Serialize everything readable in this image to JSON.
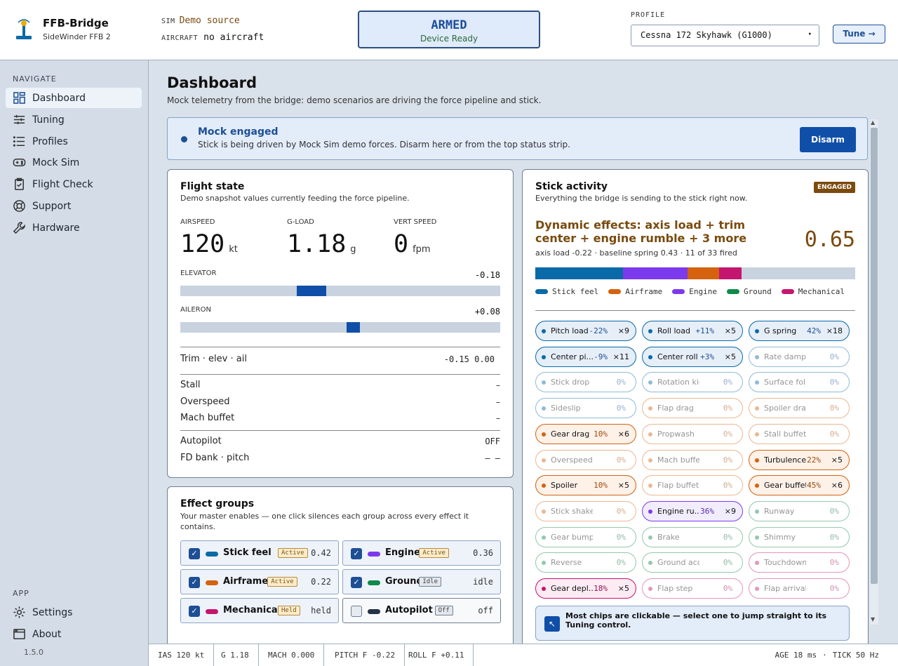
{
  "brand": {
    "title": "FFB-Bridge",
    "subtitle": "SideWinder FFB 2"
  },
  "sidebar": {
    "navigate_heading": "NAVIGATE",
    "items": [
      {
        "label": "Dashboard",
        "icon": "grid-icon"
      },
      {
        "label": "Tuning",
        "icon": "sliders-icon"
      },
      {
        "label": "Profiles",
        "icon": "list-icon"
      },
      {
        "label": "Mock Sim",
        "icon": "gamepad-icon"
      },
      {
        "label": "Flight Check",
        "icon": "clipboard-icon"
      },
      {
        "label": "Support",
        "icon": "lifebuoy-icon"
      },
      {
        "label": "Hardware",
        "icon": "wrench-icon"
      }
    ],
    "app_heading": "APP",
    "app_items": [
      {
        "label": "Settings",
        "icon": "gear-icon"
      },
      {
        "label": "About",
        "icon": "window-icon"
      }
    ],
    "version": "1.5.0"
  },
  "topbar": {
    "sim_label": "SIM",
    "sim_value": "Demo source",
    "aircraft_label": "AIRCRAFT",
    "aircraft_value": "no aircraft",
    "armed_title": "ARMED",
    "armed_sub": "Device Ready",
    "profile_label": "PROFILE",
    "profile_value": "Cessna 172 Skyhawk (G1000)",
    "tune_label": "Tune →"
  },
  "page": {
    "title": "Dashboard",
    "description": "Mock telemetry from the bridge: demo scenarios are driving the force pipeline and stick."
  },
  "banner": {
    "title": "Mock engaged",
    "text": "Stick is being driven by Mock Sim demo forces. Disarm here or from the top status strip.",
    "button": "Disarm"
  },
  "flight_state": {
    "title": "Flight state",
    "subtitle": "Demo snapshot values currently feeding the force pipeline.",
    "metrics": [
      {
        "label": "AIRSPEED",
        "value": "120",
        "unit": "kt"
      },
      {
        "label": "G-LOAD",
        "value": "1.18",
        "unit": "g"
      },
      {
        "label": "VERT SPEED",
        "value": "0",
        "unit": "fpm"
      }
    ],
    "elevator": {
      "label": "ELEVATOR",
      "value_text": "-0.18",
      "value": -0.18
    },
    "aileron": {
      "label": "AILERON",
      "value_text": "+0.08",
      "value": 0.08
    },
    "trim_label": "Trim · elev · ail",
    "trim_value": "-0.15 0.00",
    "stall_label": "Stall",
    "stall_value": "–",
    "overspeed_label": "Overspeed",
    "overspeed_value": "–",
    "mach_label": "Mach buffet",
    "mach_value": "–",
    "autopilot_label": "Autopilot",
    "autopilot_value": "OFF",
    "fd_label": "FD bank · pitch",
    "fd_value": "– –"
  },
  "effect_groups": {
    "title": "Effect groups",
    "subtitle": "Your master enables — one click silences each group across every effect it contains.",
    "groups": [
      {
        "name": "Stick feel",
        "badge": "Active",
        "value": "0.42",
        "color": "#0a6aa8",
        "checked": true,
        "kind": "active"
      },
      {
        "name": "Engine",
        "badge": "Active",
        "value": "0.36",
        "color": "#7c3aed",
        "checked": true,
        "kind": "active"
      },
      {
        "name": "Airframe",
        "badge": "Active",
        "value": "0.22",
        "color": "#d4620f",
        "checked": true,
        "kind": "active"
      },
      {
        "name": "Ground",
        "badge": "Idle",
        "value": "idle",
        "color": "#0f8a4a",
        "checked": true,
        "kind": "idle"
      },
      {
        "name": "Mechanical",
        "badge": "Held",
        "value": "held",
        "color": "#c4166f",
        "checked": true,
        "kind": "held"
      },
      {
        "name": "Autopilot",
        "badge": "Off",
        "value": "off",
        "color": "#253246",
        "checked": false,
        "kind": "off"
      }
    ]
  },
  "stick_activity": {
    "title": "Stick activity",
    "subtitle": "Everything the bridge is sending to the stick right now.",
    "badge": "ENGAGED",
    "dynamic_title": "Dynamic effects: axis load + trim center + engine rumble + 3 more",
    "dynamic_value": "0.65",
    "dynamic_sub": "axis load -0.22 · baseline spring 0.43 · 11 of 33 fired",
    "stack": [
      {
        "group": "Stick feel",
        "fraction": 0.275,
        "color": "#0a6aa8"
      },
      {
        "group": "Engine",
        "fraction": 0.2,
        "color": "#7c3aed"
      },
      {
        "group": "Airframe",
        "fraction": 0.1,
        "color": "#d4620f"
      },
      {
        "group": "Mechanical",
        "fraction": 0.07,
        "color": "#c4166f"
      }
    ],
    "legend": [
      {
        "name": "Stick feel",
        "color": "#0a6aa8"
      },
      {
        "name": "Airframe",
        "color": "#d4620f"
      },
      {
        "name": "Engine",
        "color": "#7c3aed"
      },
      {
        "name": "Ground",
        "color": "#0f8a4a"
      },
      {
        "name": "Mechanical",
        "color": "#c4166f"
      }
    ],
    "chips": [
      {
        "name": "Pitch load",
        "pct": "-22%",
        "count": "×9",
        "group": "stick",
        "active": true
      },
      {
        "name": "Roll load",
        "pct": "+11%",
        "count": "×5",
        "group": "stick",
        "active": true
      },
      {
        "name": "G spring",
        "pct": "42%",
        "count": "×18",
        "group": "stick",
        "active": true
      },
      {
        "name": "Center pi...",
        "pct": "-9%",
        "count": "×11",
        "group": "stick",
        "active": true
      },
      {
        "name": "Center roll",
        "pct": "+3%",
        "count": "×5",
        "group": "stick",
        "active": true
      },
      {
        "name": "Rate damp",
        "pct": "0%",
        "count": "",
        "group": "stick",
        "active": false
      },
      {
        "name": "Stick drop",
        "pct": "0%",
        "count": "",
        "group": "stick",
        "active": false
      },
      {
        "name": "Rotation kick",
        "pct": "0%",
        "count": "",
        "group": "stick",
        "active": false
      },
      {
        "name": "Surface follow",
        "pct": "0%",
        "count": "",
        "group": "stick",
        "active": false
      },
      {
        "name": "Sideslip",
        "pct": "0%",
        "count": "",
        "group": "stick",
        "active": false
      },
      {
        "name": "Flap drag",
        "pct": "0%",
        "count": "",
        "group": "airframe",
        "active": false
      },
      {
        "name": "Spoiler drag",
        "pct": "0%",
        "count": "",
        "group": "airframe",
        "active": false
      },
      {
        "name": "Gear drag",
        "pct": "10%",
        "count": "×6",
        "group": "airframe",
        "active": true
      },
      {
        "name": "Propwash",
        "pct": "0%",
        "count": "",
        "group": "airframe",
        "active": false
      },
      {
        "name": "Stall buffet",
        "pct": "0%",
        "count": "",
        "group": "airframe",
        "active": false
      },
      {
        "name": "Overspeed",
        "pct": "0%",
        "count": "",
        "group": "airframe",
        "active": false
      },
      {
        "name": "Mach buffet",
        "pct": "0%",
        "count": "",
        "group": "airframe",
        "active": false
      },
      {
        "name": "Turbulence",
        "pct": "22%",
        "count": "×5",
        "group": "airframe",
        "active": true
      },
      {
        "name": "Spoiler",
        "pct": "10%",
        "count": "×5",
        "group": "airframe",
        "active": true
      },
      {
        "name": "Flap buffet",
        "pct": "0%",
        "count": "",
        "group": "airframe",
        "active": false
      },
      {
        "name": "Gear buffet",
        "pct": "45%",
        "count": "×6",
        "group": "airframe",
        "active": true
      },
      {
        "name": "Stick shaker",
        "pct": "0%",
        "count": "",
        "group": "airframe",
        "active": false
      },
      {
        "name": "Engine ru...",
        "pct": "36%",
        "count": "×9",
        "group": "engine",
        "active": true
      },
      {
        "name": "Runway",
        "pct": "0%",
        "count": "",
        "group": "ground",
        "active": false
      },
      {
        "name": "Gear bumps",
        "pct": "0%",
        "count": "",
        "group": "ground",
        "active": false
      },
      {
        "name": "Brake",
        "pct": "0%",
        "count": "",
        "group": "ground",
        "active": false
      },
      {
        "name": "Shimmy",
        "pct": "0%",
        "count": "",
        "group": "ground",
        "active": false
      },
      {
        "name": "Reverse",
        "pct": "0%",
        "count": "",
        "group": "ground",
        "active": false
      },
      {
        "name": "Ground accel",
        "pct": "0%",
        "count": "",
        "group": "ground",
        "active": false
      },
      {
        "name": "Touchdown",
        "pct": "0%",
        "count": "",
        "group": "mech",
        "active": false
      },
      {
        "name": "Gear depl...",
        "pct": "18%",
        "count": "×5",
        "group": "mech",
        "active": true
      },
      {
        "name": "Flap step",
        "pct": "0%",
        "count": "",
        "group": "mech",
        "active": false
      },
      {
        "name": "Flap arrival",
        "pct": "0%",
        "count": "",
        "group": "mech",
        "active": false
      }
    ],
    "hint": "Most chips are clickable — select one to jump straight to its Tuning control."
  },
  "group_colors": {
    "stick": {
      "border": "#0a6aa8",
      "bg": "#e6eef8",
      "dot": "#0a6aa8",
      "pct": "#1d4f95"
    },
    "airframe": {
      "border": "#d4620f",
      "bg": "#fdf1e8",
      "dot": "#d4620f",
      "pct": "#a34a08"
    },
    "engine": {
      "border": "#7c3aed",
      "bg": "#f2edfd",
      "dot": "#7c3aed",
      "pct": "#5b28b8"
    },
    "ground": {
      "border": "#0f8a4a",
      "bg": "#eaf6ef",
      "dot": "#0f8a4a",
      "pct": "#0b6a38"
    },
    "mech": {
      "border": "#c4166f",
      "bg": "#fcebf3",
      "dot": "#c4166f",
      "pct": "#9a0f56"
    }
  },
  "statusbar": {
    "ias": "IAS 120 kt",
    "g": "G 1.18",
    "mach": "MACH 0.000",
    "pitch": "PITCH F -0.22",
    "roll": "ROLL F +0.11",
    "age": "AGE 18 ms",
    "sep": "·",
    "tick": "TICK 50 Hz"
  }
}
